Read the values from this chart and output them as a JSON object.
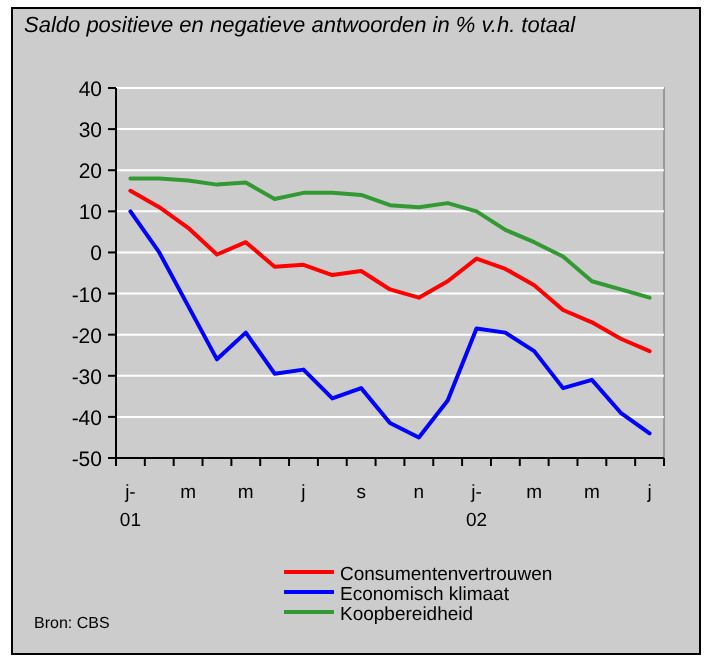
{
  "chart_data": {
    "type": "line",
    "title": "Saldo positieve en negatieve antwoorden in % v.h. totaal",
    "categories": [
      "j-\n01",
      null,
      "m",
      null,
      "m",
      null,
      "j",
      null,
      "s",
      null,
      "n",
      null,
      "j-\n02",
      null,
      "m",
      null,
      "m",
      null,
      "j"
    ],
    "series": [
      {
        "name": "Consumentenvertrouwen",
        "color": "#ff0000",
        "values": [
          15,
          11,
          6,
          -0.5,
          2.5,
          -3.5,
          -3,
          -5.5,
          -4.5,
          -9,
          -11,
          -7,
          -1.5,
          -4,
          -8,
          -14,
          -17,
          -21,
          -24
        ]
      },
      {
        "name": "Economisch klimaat",
        "color": "#0000ff",
        "values": [
          10,
          0,
          -13,
          -26,
          -19.5,
          -29.5,
          -28.5,
          -35.5,
          -33,
          -41.5,
          -45,
          -36,
          -18.5,
          -19.5,
          -24,
          -33,
          -31,
          -39,
          -44
        ]
      },
      {
        "name": "Koopbereidheid",
        "color": "#339933",
        "values": [
          18,
          18,
          17.5,
          16.5,
          17,
          13,
          14.5,
          14.5,
          14,
          11.5,
          11,
          12,
          10,
          5.5,
          2.5,
          -1,
          -7,
          -9,
          -11
        ]
      }
    ],
    "ylim": [
      -50,
      40
    ],
    "yticks": [
      -50,
      -40,
      -30,
      -20,
      -10,
      0,
      10,
      20,
      30,
      40
    ],
    "grid": "y",
    "legend": "bottom",
    "marker": "none",
    "line_style": "solid",
    "annotations": [
      "Bron: CBS"
    ]
  }
}
